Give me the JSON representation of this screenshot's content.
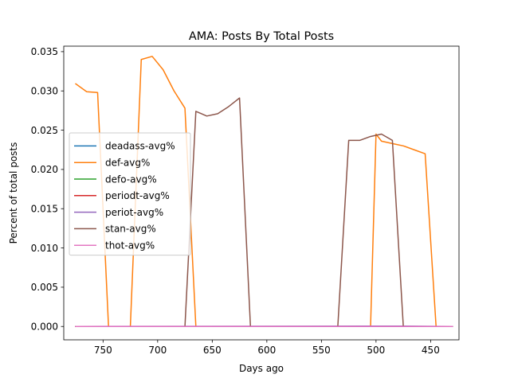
{
  "chart_data": {
    "type": "line",
    "title": "AMA: Posts By Total Posts",
    "xlabel": "Days ago",
    "ylabel": "Percent of total posts",
    "xlim": [
      786,
      424
    ],
    "ylim": [
      -0.0017,
      0.0357
    ],
    "x_inverted": true,
    "xticks": [
      750,
      700,
      650,
      600,
      550,
      500,
      450
    ],
    "xtick_labels": [
      "750",
      "700",
      "650",
      "600",
      "550",
      "500",
      "450"
    ],
    "yticks": [
      0.0,
      0.005,
      0.01,
      0.015,
      0.02,
      0.025,
      0.03,
      0.035
    ],
    "ytick_labels": [
      "0.000",
      "0.005",
      "0.010",
      "0.015",
      "0.020",
      "0.025",
      "0.030",
      "0.035"
    ],
    "grid": false,
    "legend_position": "center-left",
    "series": [
      {
        "name": "deadass-avg%",
        "color": "#1f77b4",
        "x": [
          775,
          430
        ],
        "y": [
          0,
          0
        ]
      },
      {
        "name": "def-avg%",
        "color": "#ff7f0e",
        "x": [
          775,
          765,
          755,
          745,
          725,
          715,
          705,
          695,
          685,
          675,
          665,
          655,
          645,
          635,
          625,
          615,
          600,
          550,
          505,
          500,
          495,
          485,
          475,
          465,
          455,
          445,
          435,
          430
        ],
        "y": [
          0.0309,
          0.0299,
          0.0298,
          0.0,
          0.0,
          0.034,
          0.0344,
          0.0327,
          0.03,
          0.0278,
          0.0,
          0.0,
          0.0,
          0.0,
          0.0,
          0.0,
          0.0,
          0.0,
          0.0,
          0.0245,
          0.0236,
          0.0233,
          0.023,
          0.0225,
          0.022,
          0.0,
          0.0,
          0.0
        ]
      },
      {
        "name": "defo-avg%",
        "color": "#2ca02c",
        "x": [
          775,
          430
        ],
        "y": [
          0,
          0
        ]
      },
      {
        "name": "periodt-avg%",
        "color": "#d62728",
        "x": [
          775,
          430
        ],
        "y": [
          0,
          0
        ]
      },
      {
        "name": "periot-avg%",
        "color": "#9467bd",
        "x": [
          775,
          510,
          480,
          430
        ],
        "y": [
          0,
          5e-05,
          5e-05,
          0
        ]
      },
      {
        "name": "stan-avg%",
        "color": "#8c564b",
        "x": [
          775,
          675,
          665,
          655,
          645,
          635,
          625,
          615,
          600,
          535,
          525,
          515,
          505,
          495,
          485,
          475,
          430
        ],
        "y": [
          0,
          0,
          0.0274,
          0.0268,
          0.0271,
          0.028,
          0.0291,
          0.0,
          0.0,
          0.0,
          0.0237,
          0.0237,
          0.0242,
          0.0245,
          0.0237,
          0.0,
          0.0
        ]
      },
      {
        "name": "thot-avg%",
        "color": "#e377c2",
        "x": [
          775,
          430
        ],
        "y": [
          0,
          0
        ]
      }
    ]
  }
}
